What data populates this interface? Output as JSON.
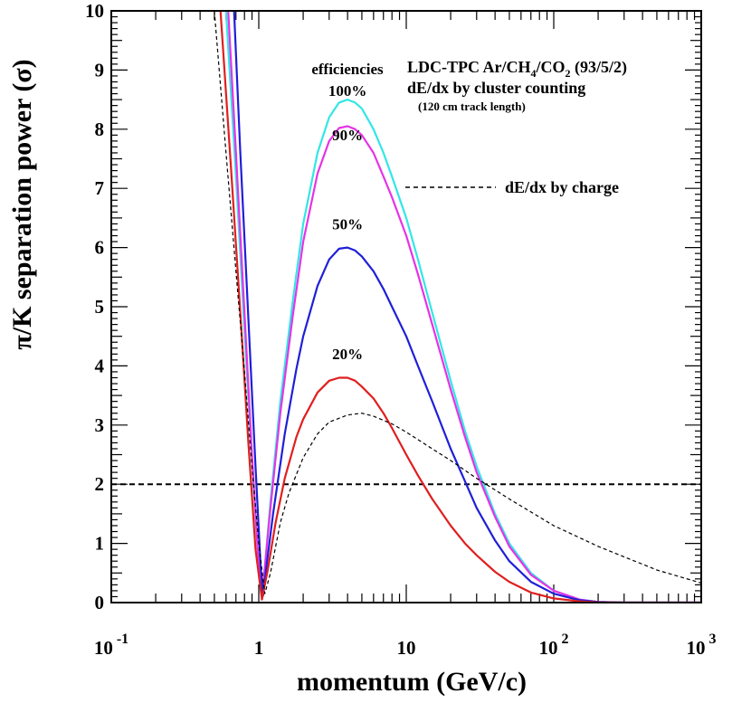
{
  "chart_data": {
    "type": "line",
    "title": "LDC-TPC Ar/CH4/CO2 (93/5/2)",
    "title_parts": {
      "prefix": "LDC-TPC Ar/CH",
      "sub1": "4",
      "mid": "/CO",
      "sub2": "2",
      "suffix": " (93/5/2)"
    },
    "subtitle": "dE/dx by cluster counting",
    "subsubtitle": "(120 cm track length)",
    "efficiencies_label": "efficiencies",
    "xlabel": "momentum (GeV/c)",
    "ylabel": "π/K separation power (σ)",
    "xscale": "log",
    "xlim": [
      0.1,
      1000
    ],
    "ylim": [
      0,
      10
    ],
    "x_ticks": [
      {
        "value": 0.1,
        "base": "10",
        "exp": "-1"
      },
      {
        "value": 1,
        "base": "1",
        "exp": ""
      },
      {
        "value": 10,
        "base": "10",
        "exp": ""
      },
      {
        "value": 100,
        "base": "10",
        "exp": "2"
      },
      {
        "value": 1000,
        "base": "10",
        "exp": "3"
      }
    ],
    "y_ticks": [
      "0",
      "1",
      "2",
      "3",
      "4",
      "5",
      "6",
      "7",
      "8",
      "9",
      "10"
    ],
    "reference_line": {
      "y": 2,
      "style": "dashed",
      "color": "#000000"
    },
    "series": [
      {
        "name": "100%",
        "label": "100%",
        "color": "#33e6e6",
        "style": "solid",
        "points": [
          [
            0.6,
            10
          ],
          [
            0.7,
            7.2
          ],
          [
            0.8,
            4.6
          ],
          [
            0.9,
            2.4
          ],
          [
            1.0,
            0.6
          ],
          [
            1.05,
            0.12
          ],
          [
            1.1,
            0.6
          ],
          [
            1.2,
            1.7
          ],
          [
            1.4,
            3.4
          ],
          [
            1.7,
            5.1
          ],
          [
            2,
            6.4
          ],
          [
            2.5,
            7.6
          ],
          [
            3,
            8.2
          ],
          [
            3.5,
            8.45
          ],
          [
            4,
            8.5
          ],
          [
            4.5,
            8.45
          ],
          [
            5,
            8.35
          ],
          [
            6,
            8.0
          ],
          [
            7,
            7.6
          ],
          [
            8,
            7.2
          ],
          [
            10,
            6.5
          ],
          [
            12,
            5.8
          ],
          [
            15,
            4.9
          ],
          [
            20,
            3.75
          ],
          [
            25,
            2.9
          ],
          [
            30,
            2.3
          ],
          [
            40,
            1.5
          ],
          [
            50,
            1.0
          ],
          [
            70,
            0.5
          ],
          [
            100,
            0.2
          ],
          [
            150,
            0.05
          ],
          [
            200,
            0.01
          ],
          [
            300,
            0
          ],
          [
            1000,
            0
          ]
        ],
        "label_at": [
          4,
          8.5
        ]
      },
      {
        "name": "90%",
        "label": "90%",
        "color": "#e633e6",
        "style": "solid",
        "points": [
          [
            0.62,
            10
          ],
          [
            0.7,
            7.6
          ],
          [
            0.8,
            4.9
          ],
          [
            0.9,
            2.5
          ],
          [
            1.0,
            0.6
          ],
          [
            1.05,
            0.12
          ],
          [
            1.1,
            0.6
          ],
          [
            1.2,
            1.6
          ],
          [
            1.4,
            3.2
          ],
          [
            1.7,
            4.85
          ],
          [
            2,
            6.1
          ],
          [
            2.5,
            7.25
          ],
          [
            3,
            7.8
          ],
          [
            3.5,
            8.02
          ],
          [
            4,
            8.05
          ],
          [
            4.5,
            8.0
          ],
          [
            5,
            7.9
          ],
          [
            6,
            7.6
          ],
          [
            7,
            7.2
          ],
          [
            8,
            6.85
          ],
          [
            10,
            6.2
          ],
          [
            12,
            5.55
          ],
          [
            15,
            4.7
          ],
          [
            20,
            3.6
          ],
          [
            25,
            2.8
          ],
          [
            30,
            2.2
          ],
          [
            40,
            1.45
          ],
          [
            50,
            0.95
          ],
          [
            70,
            0.47
          ],
          [
            100,
            0.2
          ],
          [
            150,
            0.05
          ],
          [
            200,
            0.01
          ],
          [
            300,
            0
          ],
          [
            1000,
            0
          ]
        ],
        "label_at": [
          4,
          7.75
        ]
      },
      {
        "name": "50%",
        "label": "50%",
        "color": "#1f1fd9",
        "style": "solid",
        "points": [
          [
            0.68,
            10
          ],
          [
            0.75,
            7.6
          ],
          [
            0.85,
            4.8
          ],
          [
            0.95,
            2.3
          ],
          [
            1.03,
            0.6
          ],
          [
            1.07,
            0.12
          ],
          [
            1.12,
            0.55
          ],
          [
            1.25,
            1.5
          ],
          [
            1.5,
            2.85
          ],
          [
            1.8,
            3.95
          ],
          [
            2,
            4.5
          ],
          [
            2.5,
            5.35
          ],
          [
            3,
            5.8
          ],
          [
            3.5,
            5.98
          ],
          [
            4,
            6.0
          ],
          [
            4.5,
            5.95
          ],
          [
            5,
            5.85
          ],
          [
            6,
            5.6
          ],
          [
            7,
            5.3
          ],
          [
            8,
            5.0
          ],
          [
            10,
            4.5
          ],
          [
            12,
            4.0
          ],
          [
            15,
            3.4
          ],
          [
            20,
            2.6
          ],
          [
            25,
            2.05
          ],
          [
            30,
            1.6
          ],
          [
            40,
            1.05
          ],
          [
            50,
            0.7
          ],
          [
            70,
            0.35
          ],
          [
            100,
            0.15
          ],
          [
            150,
            0.04
          ],
          [
            200,
            0.01
          ],
          [
            300,
            0
          ],
          [
            1000,
            0
          ]
        ],
        "label_at": [
          4,
          6.25
        ]
      },
      {
        "name": "20%",
        "label": "20%",
        "color": "#e01f1f",
        "style": "solid",
        "points": [
          [
            0.55,
            10
          ],
          [
            0.65,
            7.3
          ],
          [
            0.75,
            4.9
          ],
          [
            0.85,
            2.7
          ],
          [
            0.95,
            0.9
          ],
          [
            1.05,
            0.05
          ],
          [
            1.15,
            0.55
          ],
          [
            1.3,
            1.35
          ],
          [
            1.5,
            2.1
          ],
          [
            1.8,
            2.8
          ],
          [
            2,
            3.1
          ],
          [
            2.5,
            3.55
          ],
          [
            3,
            3.75
          ],
          [
            3.5,
            3.8
          ],
          [
            4,
            3.8
          ],
          [
            4.5,
            3.75
          ],
          [
            5,
            3.65
          ],
          [
            6,
            3.45
          ],
          [
            7,
            3.2
          ],
          [
            8,
            2.95
          ],
          [
            10,
            2.5
          ],
          [
            12,
            2.15
          ],
          [
            15,
            1.75
          ],
          [
            20,
            1.3
          ],
          [
            25,
            1.0
          ],
          [
            30,
            0.8
          ],
          [
            40,
            0.52
          ],
          [
            50,
            0.35
          ],
          [
            70,
            0.17
          ],
          [
            100,
            0.07
          ],
          [
            150,
            0.02
          ],
          [
            200,
            0.005
          ],
          [
            300,
            0
          ],
          [
            1000,
            0
          ]
        ],
        "label_at": [
          4,
          4.05
        ]
      },
      {
        "name": "dE/dx by charge",
        "label": "dE/dx by charge",
        "color": "#000000",
        "style": "dashed",
        "points": [
          [
            0.5,
            10
          ],
          [
            0.6,
            7.6
          ],
          [
            0.7,
            5.6
          ],
          [
            0.8,
            3.9
          ],
          [
            0.9,
            2.3
          ],
          [
            1.0,
            1.0
          ],
          [
            1.1,
            0.15
          ],
          [
            1.2,
            0.5
          ],
          [
            1.4,
            1.35
          ],
          [
            1.6,
            1.85
          ],
          [
            2,
            2.45
          ],
          [
            2.5,
            2.85
          ],
          [
            3,
            3.05
          ],
          [
            4,
            3.17
          ],
          [
            5,
            3.2
          ],
          [
            6,
            3.15
          ],
          [
            8,
            3.02
          ],
          [
            10,
            2.88
          ],
          [
            15,
            2.6
          ],
          [
            20,
            2.4
          ],
          [
            30,
            2.1
          ],
          [
            50,
            1.75
          ],
          [
            100,
            1.3
          ],
          [
            200,
            0.95
          ],
          [
            500,
            0.55
          ],
          [
            1000,
            0.33
          ]
        ]
      }
    ],
    "legend": {
      "entry": "dE/dx by charge",
      "style": "dashed"
    }
  }
}
